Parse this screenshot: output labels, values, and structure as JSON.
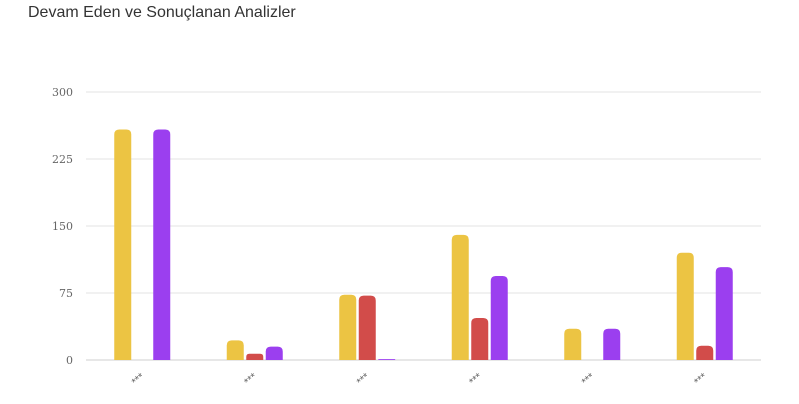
{
  "chart_data": {
    "type": "bar",
    "title": "Devam Eden ve Sonuçlanan Analizler",
    "xlabel": "",
    "ylabel": "",
    "categories": [
      "***",
      "***",
      "***",
      "***",
      "***",
      "***"
    ],
    "series": [
      {
        "color": "#ECC443",
        "values": [
          258,
          22,
          73,
          140,
          35,
          120
        ]
      },
      {
        "color": "#D24C4A",
        "values": [
          0,
          7,
          72,
          47,
          0,
          16
        ]
      },
      {
        "color": "#9B3FEF",
        "values": [
          258,
          15,
          1,
          94,
          35,
          104
        ]
      }
    ],
    "ylim": [
      0,
      300
    ],
    "yticks": [
      0,
      75,
      150,
      225,
      300
    ],
    "grid": true,
    "legend": "none"
  }
}
